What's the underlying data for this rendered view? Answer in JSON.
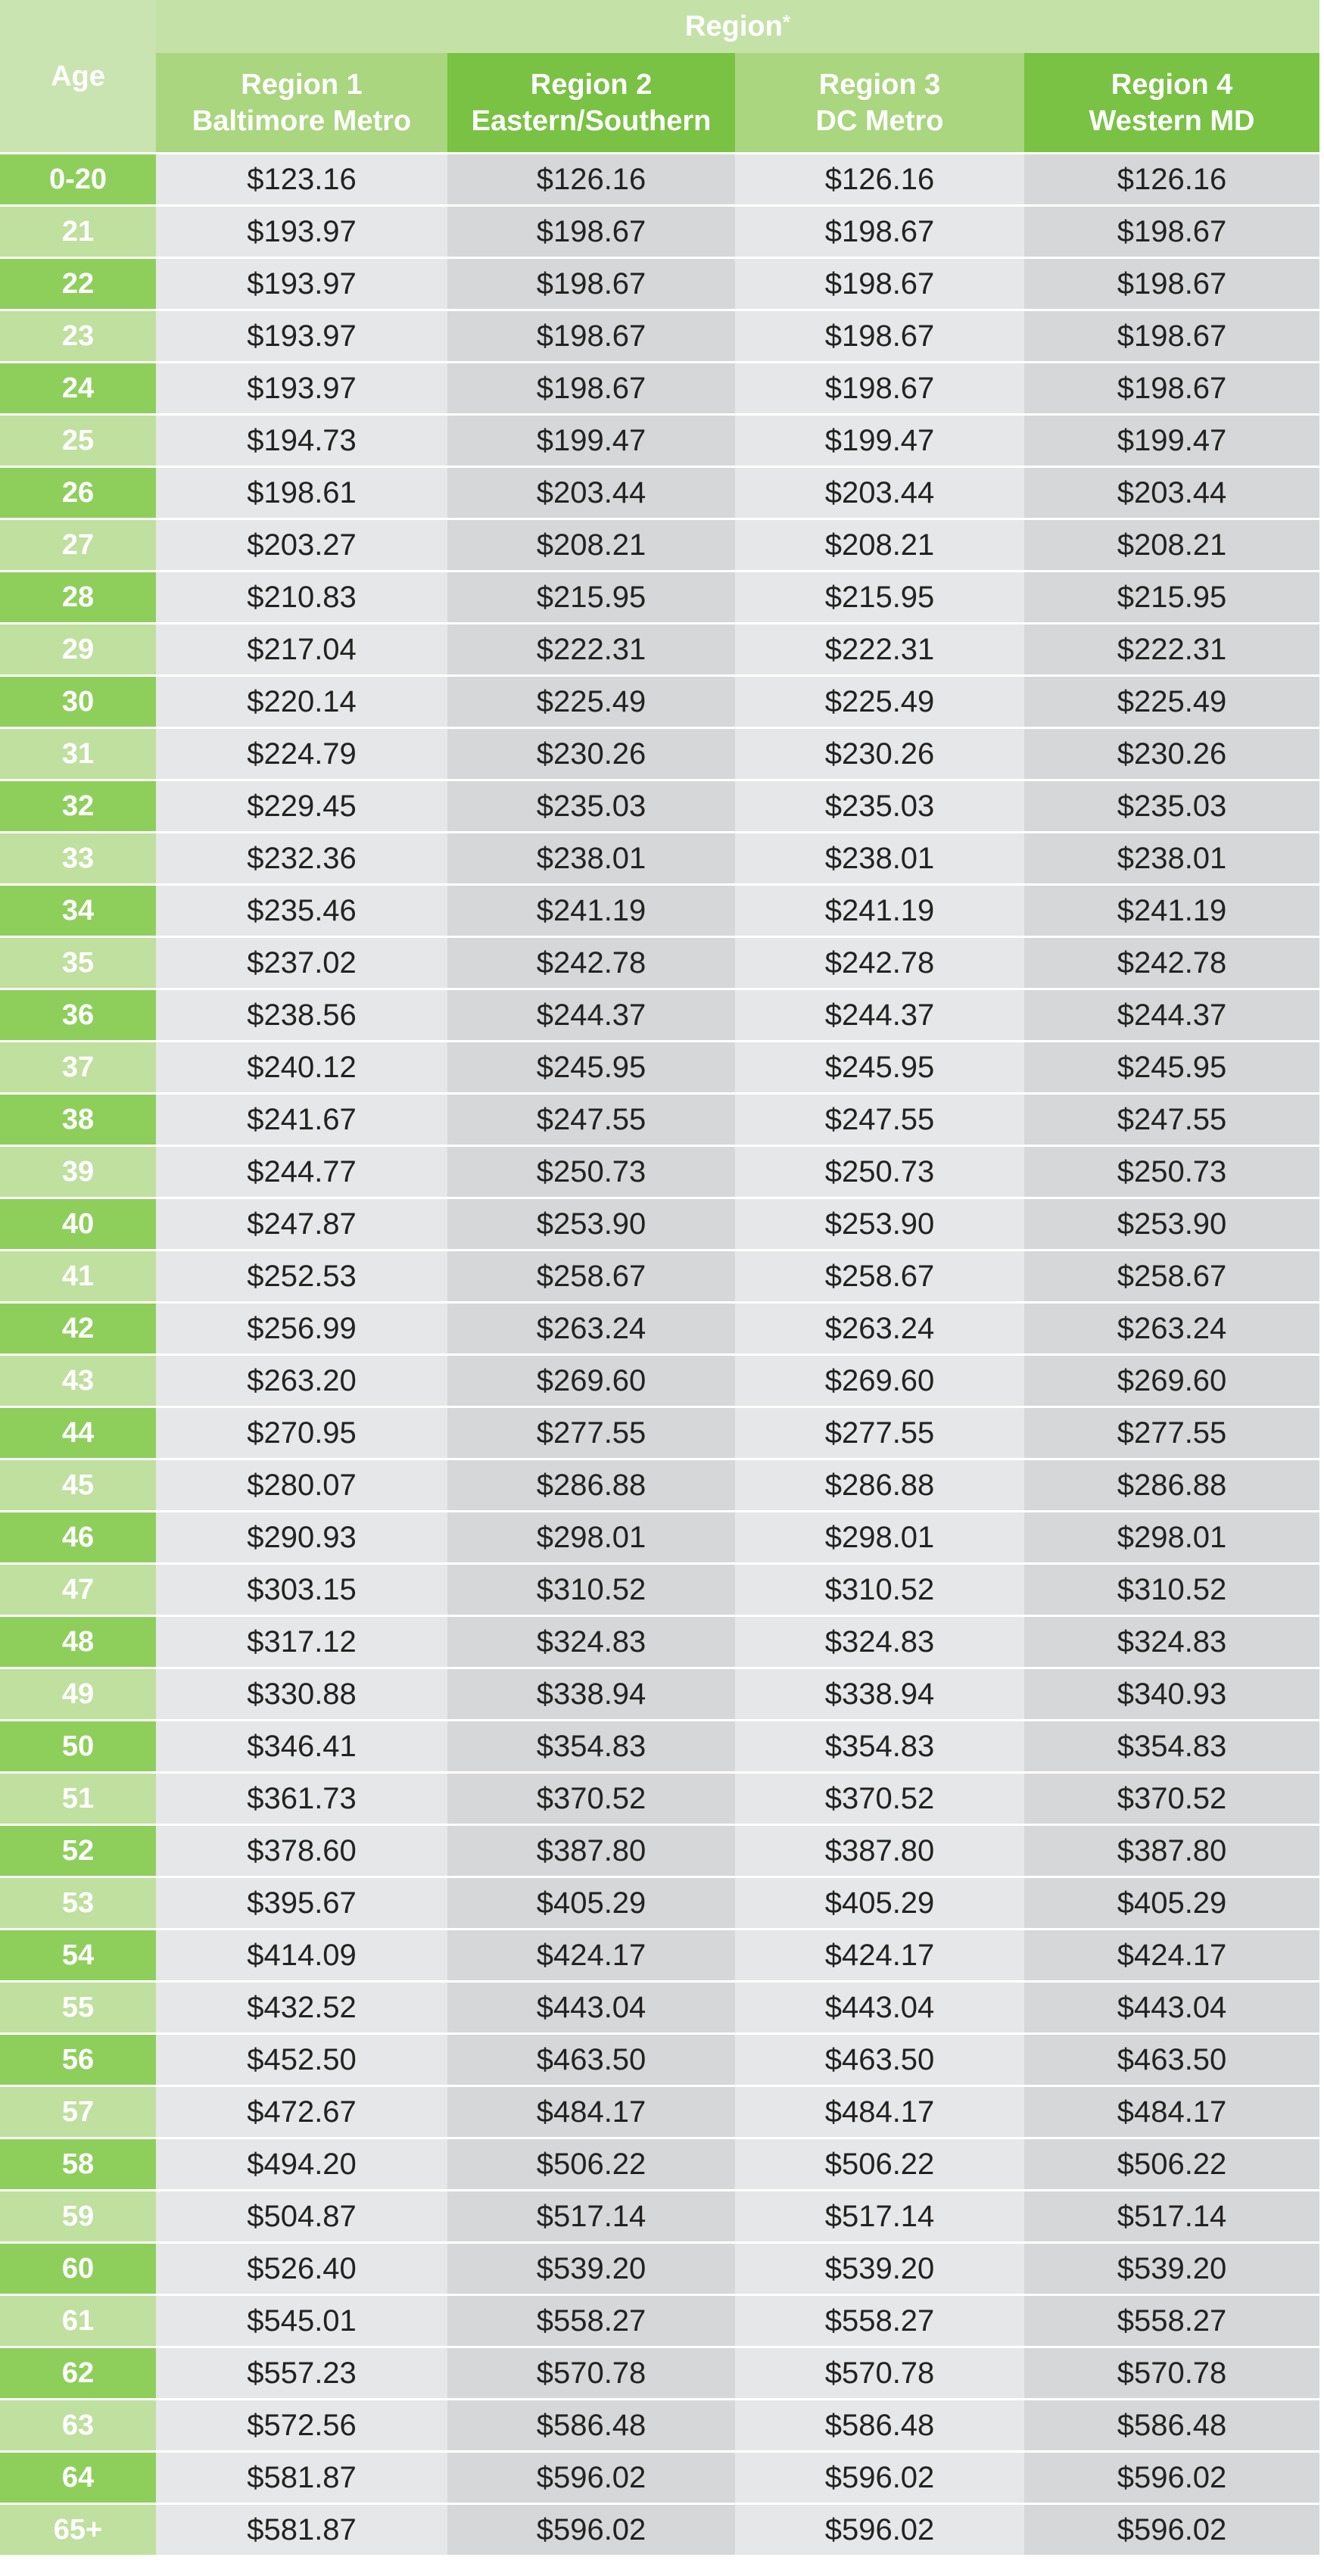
{
  "header": {
    "age_label": "Age",
    "region_label": "Region",
    "region_marker": "*",
    "columns": [
      {
        "line1": "Region 1",
        "line2": "Baltimore Metro"
      },
      {
        "line1": "Region 2",
        "line2": "Eastern/Southern"
      },
      {
        "line1": "Region 3",
        "line2": "DC Metro"
      },
      {
        "line1": "Region 4",
        "line2": "Western MD"
      }
    ]
  },
  "rows": [
    {
      "age": "0-20",
      "values": [
        "$123.16",
        "$126.16",
        "$126.16",
        "$126.16"
      ]
    },
    {
      "age": "21",
      "values": [
        "$193.97",
        "$198.67",
        "$198.67",
        "$198.67"
      ]
    },
    {
      "age": "22",
      "values": [
        "$193.97",
        "$198.67",
        "$198.67",
        "$198.67"
      ]
    },
    {
      "age": "23",
      "values": [
        "$193.97",
        "$198.67",
        "$198.67",
        "$198.67"
      ]
    },
    {
      "age": "24",
      "values": [
        "$193.97",
        "$198.67",
        "$198.67",
        "$198.67"
      ]
    },
    {
      "age": "25",
      "values": [
        "$194.73",
        "$199.47",
        "$199.47",
        "$199.47"
      ]
    },
    {
      "age": "26",
      "values": [
        "$198.61",
        "$203.44",
        "$203.44",
        "$203.44"
      ]
    },
    {
      "age": "27",
      "values": [
        "$203.27",
        "$208.21",
        "$208.21",
        "$208.21"
      ]
    },
    {
      "age": "28",
      "values": [
        "$210.83",
        "$215.95",
        "$215.95",
        "$215.95"
      ]
    },
    {
      "age": "29",
      "values": [
        "$217.04",
        "$222.31",
        "$222.31",
        "$222.31"
      ]
    },
    {
      "age": "30",
      "values": [
        "$220.14",
        "$225.49",
        "$225.49",
        "$225.49"
      ]
    },
    {
      "age": "31",
      "values": [
        "$224.79",
        "$230.26",
        "$230.26",
        "$230.26"
      ]
    },
    {
      "age": "32",
      "values": [
        "$229.45",
        "$235.03",
        "$235.03",
        "$235.03"
      ]
    },
    {
      "age": "33",
      "values": [
        "$232.36",
        "$238.01",
        "$238.01",
        "$238.01"
      ]
    },
    {
      "age": "34",
      "values": [
        "$235.46",
        "$241.19",
        "$241.19",
        "$241.19"
      ]
    },
    {
      "age": "35",
      "values": [
        "$237.02",
        "$242.78",
        "$242.78",
        "$242.78"
      ]
    },
    {
      "age": "36",
      "values": [
        "$238.56",
        "$244.37",
        "$244.37",
        "$244.37"
      ]
    },
    {
      "age": "37",
      "values": [
        "$240.12",
        "$245.95",
        "$245.95",
        "$245.95"
      ]
    },
    {
      "age": "38",
      "values": [
        "$241.67",
        "$247.55",
        "$247.55",
        "$247.55"
      ]
    },
    {
      "age": "39",
      "values": [
        "$244.77",
        "$250.73",
        "$250.73",
        "$250.73"
      ]
    },
    {
      "age": "40",
      "values": [
        "$247.87",
        "$253.90",
        "$253.90",
        "$253.90"
      ]
    },
    {
      "age": "41",
      "values": [
        "$252.53",
        "$258.67",
        "$258.67",
        "$258.67"
      ]
    },
    {
      "age": "42",
      "values": [
        "$256.99",
        "$263.24",
        "$263.24",
        "$263.24"
      ]
    },
    {
      "age": "43",
      "values": [
        "$263.20",
        "$269.60",
        "$269.60",
        "$269.60"
      ]
    },
    {
      "age": "44",
      "values": [
        "$270.95",
        "$277.55",
        "$277.55",
        "$277.55"
      ]
    },
    {
      "age": "45",
      "values": [
        "$280.07",
        "$286.88",
        "$286.88",
        "$286.88"
      ]
    },
    {
      "age": "46",
      "values": [
        "$290.93",
        "$298.01",
        "$298.01",
        "$298.01"
      ]
    },
    {
      "age": "47",
      "values": [
        "$303.15",
        "$310.52",
        "$310.52",
        "$310.52"
      ]
    },
    {
      "age": "48",
      "values": [
        "$317.12",
        "$324.83",
        "$324.83",
        "$324.83"
      ]
    },
    {
      "age": "49",
      "values": [
        "$330.88",
        "$338.94",
        "$338.94",
        "$340.93"
      ]
    },
    {
      "age": "50",
      "values": [
        "$346.41",
        "$354.83",
        "$354.83",
        "$354.83"
      ]
    },
    {
      "age": "51",
      "values": [
        "$361.73",
        "$370.52",
        "$370.52",
        "$370.52"
      ]
    },
    {
      "age": "52",
      "values": [
        "$378.60",
        "$387.80",
        "$387.80",
        "$387.80"
      ]
    },
    {
      "age": "53",
      "values": [
        "$395.67",
        "$405.29",
        "$405.29",
        "$405.29"
      ]
    },
    {
      "age": "54",
      "values": [
        "$414.09",
        "$424.17",
        "$424.17",
        "$424.17"
      ]
    },
    {
      "age": "55",
      "values": [
        "$432.52",
        "$443.04",
        "$443.04",
        "$443.04"
      ]
    },
    {
      "age": "56",
      "values": [
        "$452.50",
        "$463.50",
        "$463.50",
        "$463.50"
      ]
    },
    {
      "age": "57",
      "values": [
        "$472.67",
        "$484.17",
        "$484.17",
        "$484.17"
      ]
    },
    {
      "age": "58",
      "values": [
        "$494.20",
        "$506.22",
        "$506.22",
        "$506.22"
      ]
    },
    {
      "age": "59",
      "values": [
        "$504.87",
        "$517.14",
        "$517.14",
        "$517.14"
      ]
    },
    {
      "age": "60",
      "values": [
        "$526.40",
        "$539.20",
        "$539.20",
        "$539.20"
      ]
    },
    {
      "age": "61",
      "values": [
        "$545.01",
        "$558.27",
        "$558.27",
        "$558.27"
      ]
    },
    {
      "age": "62",
      "values": [
        "$557.23",
        "$570.78",
        "$570.78",
        "$570.78"
      ]
    },
    {
      "age": "63",
      "values": [
        "$572.56",
        "$586.48",
        "$586.48",
        "$586.48"
      ]
    },
    {
      "age": "64",
      "values": [
        "$581.87",
        "$596.02",
        "$596.02",
        "$596.02"
      ]
    },
    {
      "age": "65+",
      "values": [
        "$581.87",
        "$596.02",
        "$596.02",
        "$596.02"
      ]
    }
  ]
}
